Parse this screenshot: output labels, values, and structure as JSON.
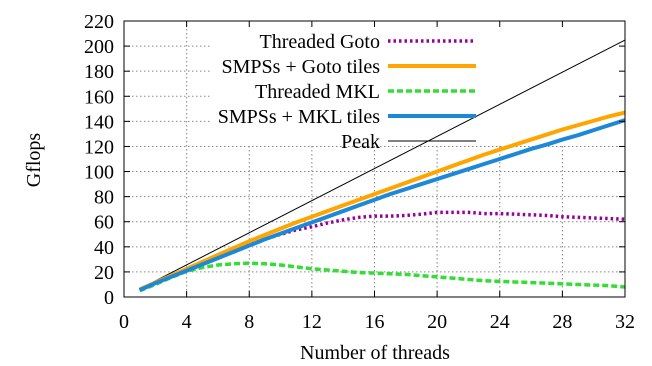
{
  "chart_data": {
    "type": "line",
    "title": "",
    "xlabel": "Number of threads",
    "ylabel": "Gflops",
    "xlim": [
      0,
      32
    ],
    "ylim": [
      0,
      220
    ],
    "xticks": [
      0,
      4,
      8,
      12,
      16,
      20,
      24,
      28,
      32
    ],
    "yticks": [
      0,
      20,
      40,
      60,
      80,
      100,
      120,
      140,
      160,
      180,
      200,
      220
    ],
    "grid": true,
    "legend_position": "top-left",
    "x": [
      1,
      2,
      3,
      4,
      5,
      6,
      7,
      8,
      9,
      10,
      11,
      12,
      13,
      14,
      15,
      16,
      17,
      18,
      19,
      20,
      21,
      22,
      23,
      24,
      25,
      26,
      27,
      28,
      29,
      30,
      31,
      32
    ],
    "series": [
      {
        "name": "Threaded Goto",
        "color": "#990099",
        "style": "dotted",
        "values": [
          5.5,
          11,
          16.5,
          21.5,
          27,
          32,
          37,
          41.5,
          46,
          50,
          53.5,
          56,
          59,
          61.5,
          63.5,
          64.5,
          64.5,
          65,
          66,
          67.5,
          67.5,
          67.5,
          66.5,
          66.5,
          66,
          65.5,
          65,
          64,
          63.5,
          63,
          62.5,
          62
        ]
      },
      {
        "name": "SMPSs + Goto tiles",
        "color": "#ffa500",
        "style": "solid",
        "values": [
          6,
          11.5,
          17,
          22.5,
          28,
          33.5,
          39,
          44.5,
          49.5,
          54.5,
          59.5,
          64,
          68.5,
          73,
          77.5,
          82,
          86.5,
          91,
          95.5,
          100,
          104.5,
          109,
          113.5,
          117.5,
          121.5,
          125.5,
          129.5,
          133.5,
          137,
          140.5,
          144,
          147
        ]
      },
      {
        "name": "Threaded MKL",
        "color": "#33dd33",
        "style": "dashed",
        "values": [
          5,
          10,
          15.5,
          20.5,
          23.5,
          25.5,
          26.5,
          27,
          26.5,
          25.5,
          24,
          22.5,
          21.5,
          20.5,
          19.5,
          19,
          18.5,
          18,
          17,
          16,
          15,
          14,
          13,
          12.5,
          12,
          11.5,
          11,
          10.5,
          10,
          9.5,
          9,
          8
        ]
      },
      {
        "name": "SMPSs + MKL tiles",
        "color": "#1e88d8",
        "style": "solid",
        "values": [
          5.5,
          11,
          16,
          21,
          26,
          31,
          36,
          41,
          46,
          50.5,
          55,
          59.5,
          64,
          68.5,
          73,
          77.5,
          82,
          86,
          90,
          94,
          98,
          102,
          106,
          110,
          114,
          118,
          121.5,
          125.5,
          129,
          133,
          137,
          141
        ]
      },
      {
        "name": "Peak",
        "color": "#000000",
        "style": "thin",
        "values": [
          6.4,
          12.8,
          19.2,
          25.6,
          32,
          38.4,
          44.8,
          51.2,
          57.6,
          64,
          70.4,
          76.8,
          83.2,
          89.6,
          96,
          102.4,
          108.8,
          115.2,
          121.6,
          128,
          134.4,
          140.8,
          147.2,
          153.6,
          160,
          166.4,
          172.8,
          179.2,
          185.6,
          192,
          198.4,
          204.8
        ]
      }
    ]
  }
}
